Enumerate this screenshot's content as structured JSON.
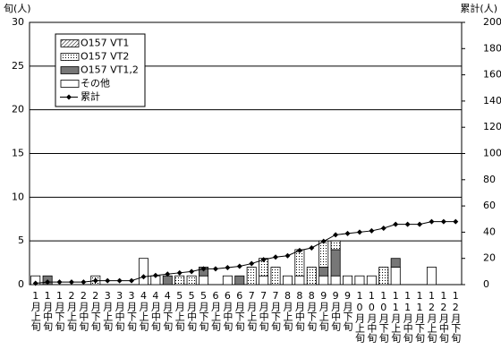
{
  "chart_data": {
    "type": "bar",
    "y_label": "旬(人)",
    "y2_label": "累計(人)",
    "categories": [
      "1月上旬",
      "1月中旬",
      "1月下旬",
      "2月上旬",
      "2月中旬",
      "2月下旬",
      "3月上旬",
      "3月中旬",
      "3月下旬",
      "4月上旬",
      "4月中旬",
      "4月下旬",
      "5月上旬",
      "5月中旬",
      "5月下旬",
      "6月上旬",
      "6月中旬",
      "6月下旬",
      "7月上旬",
      "7月中旬",
      "7月下旬",
      "8月上旬",
      "8月中旬",
      "8月下旬",
      "9月上旬",
      "9月中旬",
      "9月下旬",
      "10月上旬",
      "10月中旬",
      "10月下旬",
      "11月上旬",
      "11月中旬",
      "11月下旬",
      "12月上旬",
      "12月中旬",
      "12月下旬"
    ],
    "series": [
      {
        "name": "O157 VT1",
        "color": "#000000",
        "fill": "hatch",
        "values": [
          0,
          0,
          0,
          0,
          0,
          0,
          0,
          0,
          0,
          0,
          0,
          0,
          0,
          0,
          0,
          0,
          0,
          0,
          0,
          0,
          0,
          0,
          0,
          0,
          0,
          0,
          0,
          0,
          0,
          0,
          0,
          0,
          0,
          0,
          0,
          0
        ]
      },
      {
        "name": "O157 VT2",
        "color": "#000000",
        "fill": "dots",
        "values": [
          0,
          0,
          0,
          0,
          0,
          1,
          0,
          0,
          0,
          0,
          0,
          0,
          1,
          1,
          0,
          0,
          0,
          0,
          2,
          2,
          2,
          0,
          3,
          2,
          3,
          1,
          0,
          0,
          0,
          2,
          0,
          0,
          0,
          0,
          0,
          0
        ]
      },
      {
        "name": "O157 VT1,2",
        "color": "#777777",
        "fill": "solid",
        "values": [
          0,
          1,
          0,
          0,
          0,
          0,
          0,
          0,
          0,
          0,
          0,
          1,
          0,
          0,
          1,
          0,
          0,
          1,
          0,
          0,
          0,
          0,
          0,
          0,
          1,
          3,
          0,
          0,
          0,
          0,
          1,
          0,
          0,
          0,
          0,
          0
        ]
      },
      {
        "name": "その他",
        "color": "#ffffff",
        "fill": "solid",
        "values": [
          1,
          0,
          0,
          0,
          0,
          0,
          0,
          0,
          0,
          3,
          1,
          0,
          0,
          0,
          1,
          0,
          1,
          0,
          0,
          1,
          0,
          1,
          1,
          0,
          1,
          1,
          1,
          1,
          1,
          0,
          2,
          0,
          0,
          2,
          0,
          0
        ]
      },
      {
        "name": "累計",
        "type": "line",
        "axis": "y2",
        "color": "#000000",
        "values": [
          1,
          2,
          2,
          2,
          2,
          3,
          3,
          3,
          3,
          6,
          7,
          8,
          9,
          10,
          12,
          12,
          13,
          14,
          16,
          19,
          21,
          22,
          26,
          28,
          33,
          38,
          39,
          40,
          41,
          43,
          46,
          46,
          46,
          48,
          48,
          48
        ]
      }
    ],
    "stack_order": [
      3,
      2,
      1,
      0
    ],
    "ylim": [
      0,
      30
    ],
    "yticks": [
      0,
      5,
      10,
      15,
      20,
      25,
      30
    ],
    "y2lim": [
      0,
      200
    ],
    "y2ticks": [
      0,
      20,
      40,
      60,
      80,
      100,
      120,
      140,
      160,
      180,
      200
    ],
    "grid": true,
    "legend": "upper left"
  }
}
